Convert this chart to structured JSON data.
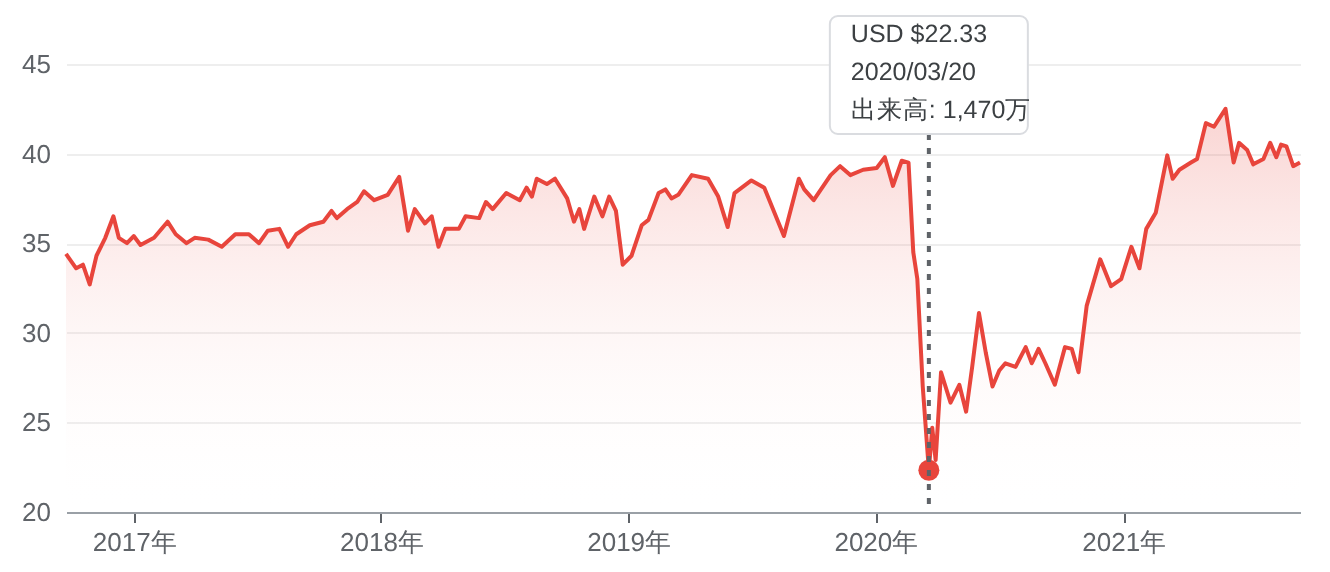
{
  "chart_data": {
    "type": "area",
    "x": [
      "2016-09-23",
      "2016-10-08",
      "2016-10-18",
      "2016-10-28",
      "2016-11-07",
      "2016-11-20",
      "2016-12-02",
      "2016-12-10",
      "2016-12-22",
      "2017-01-01",
      "2017-01-11",
      "2017-01-31",
      "2017-02-20",
      "2017-03-04",
      "2017-03-20",
      "2017-04-01",
      "2017-04-21",
      "2017-05-11",
      "2017-05-31",
      "2017-06-20",
      "2017-07-05",
      "2017-07-18",
      "2017-08-04",
      "2017-08-17",
      "2017-08-29",
      "2017-09-18",
      "2017-10-08",
      "2017-10-20",
      "2017-10-28",
      "2017-11-12",
      "2017-11-27",
      "2017-12-07",
      "2017-12-22",
      "2018-01-11",
      "2018-01-28",
      "2018-02-10",
      "2018-02-20",
      "2018-03-07",
      "2018-03-17",
      "2018-03-27",
      "2018-04-06",
      "2018-04-26",
      "2018-05-06",
      "2018-05-26",
      "2018-06-05",
      "2018-06-15",
      "2018-07-05",
      "2018-07-25",
      "2018-08-04",
      "2018-08-12",
      "2018-08-19",
      "2018-09-03",
      "2018-09-15",
      "2018-10-03",
      "2018-10-13",
      "2018-10-21",
      "2018-10-28",
      "2018-11-12",
      "2018-11-24",
      "2018-12-04",
      "2018-12-14",
      "2018-12-24",
      "2019-01-06",
      "2019-01-21",
      "2019-01-31",
      "2019-02-15",
      "2019-02-25",
      "2019-03-06",
      "2019-03-16",
      "2019-04-05",
      "2019-04-29",
      "2019-05-14",
      "2019-05-28",
      "2019-06-07",
      "2019-07-02",
      "2019-07-21",
      "2019-08-19",
      "2019-09-10",
      "2019-09-18",
      "2019-10-02",
      "2019-10-27",
      "2019-11-10",
      "2019-11-25",
      "2019-12-14",
      "2020-01-03",
      "2020-01-15",
      "2020-01-27",
      "2020-02-09",
      "2020-02-19",
      "2020-02-26",
      "2020-03-03",
      "2020-03-11",
      "2020-03-20",
      "2020-03-25",
      "2020-03-30",
      "2020-04-07",
      "2020-04-21",
      "2020-05-04",
      "2020-05-14",
      "2020-05-23",
      "2020-06-02",
      "2020-06-12",
      "2020-06-22",
      "2020-07-02",
      "2020-07-11",
      "2020-07-26",
      "2020-08-10",
      "2020-08-19",
      "2020-08-29",
      "2020-09-08",
      "2020-09-22",
      "2020-10-07",
      "2020-10-17",
      "2020-10-27",
      "2020-11-08",
      "2020-11-28",
      "2020-12-14",
      "2020-12-29",
      "2021-01-13",
      "2021-01-25",
      "2021-02-04",
      "2021-02-18",
      "2021-03-07",
      "2021-03-15",
      "2021-03-25",
      "2021-04-11",
      "2021-04-20",
      "2021-05-03",
      "2021-05-15",
      "2021-06-01",
      "2021-06-13",
      "2021-06-21",
      "2021-07-03",
      "2021-07-12",
      "2021-07-27",
      "2021-08-06",
      "2021-08-15",
      "2021-08-22",
      "2021-08-30",
      "2021-09-09",
      "2021-09-19"
    ],
    "series": [
      {
        "color": "#e8453c",
        "values": [
          34.4,
          33.6,
          33.8,
          32.7,
          34.3,
          35.3,
          36.5,
          35.3,
          35.0,
          35.4,
          34.9,
          35.3,
          36.2,
          35.5,
          35.0,
          35.3,
          35.2,
          34.8,
          35.5,
          35.5,
          35.0,
          35.7,
          35.8,
          34.8,
          35.5,
          36.0,
          36.2,
          36.8,
          36.4,
          36.9,
          37.3,
          37.9,
          37.4,
          37.7,
          38.7,
          35.7,
          36.9,
          36.1,
          36.5,
          34.8,
          35.8,
          35.8,
          36.5,
          36.4,
          37.3,
          36.9,
          37.8,
          37.4,
          38.1,
          37.6,
          38.6,
          38.3,
          38.6,
          37.5,
          36.2,
          36.9,
          35.8,
          37.6,
          36.5,
          37.6,
          36.8,
          33.8,
          34.3,
          36.0,
          36.3,
          37.8,
          38.0,
          37.5,
          37.7,
          38.8,
          38.6,
          37.6,
          35.9,
          37.8,
          38.5,
          38.1,
          35.4,
          38.6,
          38.0,
          37.4,
          38.8,
          39.3,
          38.8,
          39.1,
          39.2,
          39.8,
          38.2,
          39.6,
          39.5,
          34.5,
          33.0,
          27.0,
          22.33,
          24.7,
          22.9,
          27.8,
          26.1,
          27.1,
          25.6,
          28.1,
          31.1,
          28.9,
          27.0,
          27.9,
          28.3,
          28.1,
          29.2,
          28.3,
          29.1,
          28.3,
          27.1,
          29.2,
          29.1,
          27.8,
          31.5,
          34.1,
          32.6,
          33.0,
          34.8,
          33.6,
          35.8,
          36.7,
          39.9,
          38.6,
          39.1,
          39.5,
          39.7,
          41.7,
          41.5,
          42.5,
          39.5,
          40.6,
          40.2,
          39.4,
          39.7,
          40.6,
          39.8,
          40.5,
          40.4,
          39.3,
          39.5
        ]
      }
    ],
    "xlim": [
      "2016-09-23",
      "2021-09-19"
    ],
    "xticks": [
      {
        "value": "2017-01-01",
        "label": "2017年"
      },
      {
        "value": "2018-01-01",
        "label": "2018年"
      },
      {
        "value": "2019-01-01",
        "label": "2019年"
      },
      {
        "value": "2020-01-01",
        "label": "2020年"
      },
      {
        "value": "2021-01-01",
        "label": "2021年"
      }
    ],
    "ylim": [
      20,
      45
    ],
    "yticks": [
      20,
      25,
      30,
      35,
      40,
      45
    ],
    "grid": "y",
    "ref_lines": [
      {
        "axis": "x",
        "value": "2020-03-20",
        "line_style": "dashed",
        "color": "#5f6368"
      }
    ],
    "annotations": [
      "USD $22.33\n2020/03/20\n出来高: 1,470万"
    ]
  }
}
